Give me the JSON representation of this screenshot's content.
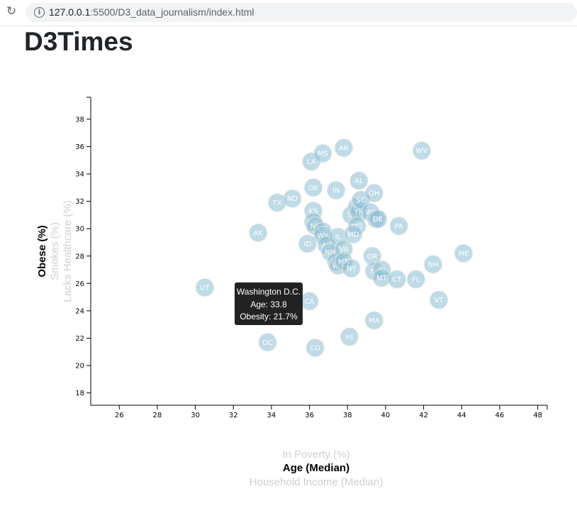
{
  "browser": {
    "reload_icon": "reload-icon",
    "info_icon": "info-icon",
    "url_host": "127.0.0.1",
    "url_rest": ":5500/D3_data_journalism/index.html"
  },
  "page": {
    "title": "D3Times"
  },
  "tooltip": {
    "state": "Washington D.C.",
    "age": "Age: 33.8",
    "obesity": "Obesity: 21.7%"
  },
  "colors": {
    "marker": "#89bdd3",
    "tooltip_bg": "#222222"
  },
  "chart_data": {
    "type": "scatter",
    "xlim": [
      24.5,
      48.5
    ],
    "ylim": [
      17.1,
      39.6
    ],
    "x_ticks": [
      26,
      28,
      30,
      32,
      34,
      36,
      38,
      40,
      42,
      44,
      46,
      48
    ],
    "y_ticks": [
      18,
      20,
      22,
      24,
      26,
      28,
      30,
      32,
      34,
      36,
      38
    ],
    "x_axis_labels": [
      {
        "label": "In Poverty (%)",
        "active": false
      },
      {
        "label": "Age (Median)",
        "active": true
      },
      {
        "label": "Household Income (Median)",
        "active": false
      }
    ],
    "y_axis_labels": [
      {
        "label": "Obese (%)",
        "active": true
      },
      {
        "label": "Smokes (%)",
        "active": false
      },
      {
        "label": "Lacks Healthcare (%)",
        "active": false
      }
    ],
    "points": [
      {
        "abbr": "UT",
        "x": 30.5,
        "y": 25.7
      },
      {
        "abbr": "AK",
        "x": 33.3,
        "y": 29.7
      },
      {
        "abbr": "DC",
        "x": 33.8,
        "y": 21.7
      },
      {
        "abbr": "TX",
        "x": 34.3,
        "y": 31.9
      },
      {
        "abbr": "ND",
        "x": 35.1,
        "y": 32.2
      },
      {
        "abbr": "ID",
        "x": 35.9,
        "y": 28.9
      },
      {
        "abbr": "CA",
        "x": 36.0,
        "y": 24.7
      },
      {
        "abbr": "LA",
        "x": 36.1,
        "y": 34.9
      },
      {
        "abbr": "OK",
        "x": 36.2,
        "y": 33.0
      },
      {
        "abbr": "KS",
        "x": 36.2,
        "y": 31.3
      },
      {
        "abbr": "GA",
        "x": 36.2,
        "y": 30.5
      },
      {
        "abbr": "NE",
        "x": 36.3,
        "y": 30.2
      },
      {
        "abbr": "CO",
        "x": 36.3,
        "y": 21.3
      },
      {
        "abbr": "MS",
        "x": 36.7,
        "y": 35.5
      },
      {
        "abbr": "SD",
        "x": 36.7,
        "y": 29.8
      },
      {
        "abbr": "WY",
        "x": 36.7,
        "y": 29.5
      },
      {
        "abbr": "AZ",
        "x": 36.9,
        "y": 28.8
      },
      {
        "abbr": "NM",
        "x": 37.1,
        "y": 28.3
      },
      {
        "abbr": "IN",
        "x": 37.4,
        "y": 32.8
      },
      {
        "abbr": "IL",
        "x": 37.5,
        "y": 29.4
      },
      {
        "abbr": "NV",
        "x": 37.4,
        "y": 27.6
      },
      {
        "abbr": "WA",
        "x": 37.5,
        "y": 27.3
      },
      {
        "abbr": "VA",
        "x": 37.8,
        "y": 28.5
      },
      {
        "abbr": "MN",
        "x": 37.8,
        "y": 27.6
      },
      {
        "abbr": "AR",
        "x": 37.8,
        "y": 35.9
      },
      {
        "abbr": "HI",
        "x": 38.1,
        "y": 22.1
      },
      {
        "abbr": "NY",
        "x": 38.2,
        "y": 27.1
      },
      {
        "abbr": "IA",
        "x": 38.2,
        "y": 31.0
      },
      {
        "abbr": "KY",
        "x": 38.5,
        "y": 31.6
      },
      {
        "abbr": "TN",
        "x": 38.6,
        "y": 31.2
      },
      {
        "abbr": "AL",
        "x": 38.6,
        "y": 33.5
      },
      {
        "abbr": "SC",
        "x": 38.7,
        "y": 32.1
      },
      {
        "abbr": "MO",
        "x": 38.5,
        "y": 30.2
      },
      {
        "abbr": "MD",
        "x": 38.3,
        "y": 29.6
      },
      {
        "abbr": "WI",
        "x": 39.2,
        "y": 31.2
      },
      {
        "abbr": "OH",
        "x": 39.4,
        "y": 32.6
      },
      {
        "abbr": "MI",
        "x": 39.5,
        "y": 30.7
      },
      {
        "abbr": "DE",
        "x": 39.6,
        "y": 30.7
      },
      {
        "abbr": "OR",
        "x": 39.3,
        "y": 28.0
      },
      {
        "abbr": "NJ",
        "x": 39.4,
        "y": 26.9
      },
      {
        "abbr": "RI",
        "x": 39.8,
        "y": 27.0
      },
      {
        "abbr": "MT",
        "x": 39.8,
        "y": 26.4
      },
      {
        "abbr": "MA",
        "x": 39.4,
        "y": 23.3
      },
      {
        "abbr": "PA",
        "x": 40.7,
        "y": 30.2
      },
      {
        "abbr": "CT",
        "x": 40.6,
        "y": 26.3
      },
      {
        "abbr": "FL",
        "x": 41.6,
        "y": 26.3
      },
      {
        "abbr": "WV",
        "x": 41.9,
        "y": 35.7
      },
      {
        "abbr": "NH",
        "x": 42.5,
        "y": 27.4
      },
      {
        "abbr": "VT",
        "x": 42.8,
        "y": 24.8
      },
      {
        "abbr": "ME",
        "x": 44.1,
        "y": 28.2
      }
    ]
  }
}
